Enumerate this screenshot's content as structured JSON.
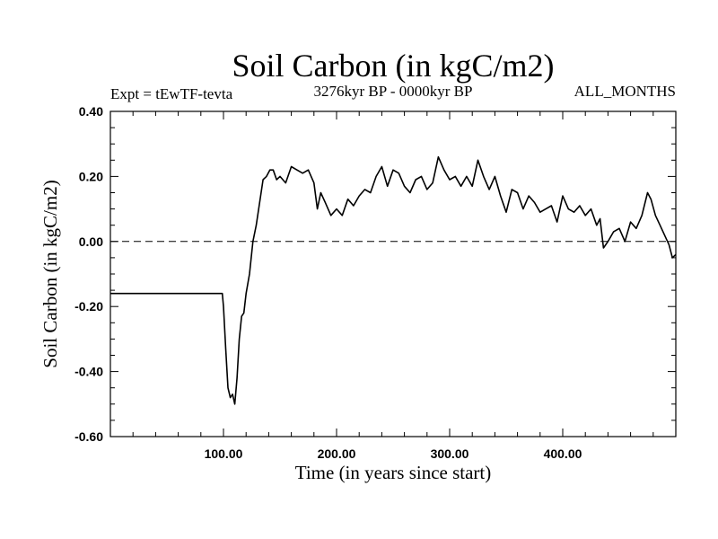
{
  "chart_data": {
    "type": "line",
    "title": "Soil Carbon (in kgC/m2)",
    "subtitle_left": "Expt = tEwTF-tevta",
    "subtitle_center": "3276kyr BP - 0000kyr BP",
    "subtitle_right": "ALL_MONTHS",
    "xlabel": "Time (in years since start)",
    "ylabel": "Soil Carbon (in kgC/m2)",
    "xlim": [
      0,
      500
    ],
    "ylim": [
      -0.6,
      0.4
    ],
    "x_ticks": [
      100,
      200,
      300,
      400
    ],
    "x_tick_labels": [
      "100.00",
      "200.00",
      "300.00",
      "400.00"
    ],
    "y_ticks": [
      -0.6,
      -0.4,
      -0.2,
      0.0,
      0.2,
      0.4
    ],
    "y_tick_labels": [
      "-0.60",
      "-0.40",
      "-0.20",
      "0.00",
      "0.20",
      "0.40"
    ],
    "reference_line": {
      "y": 0.0,
      "style": "dashed"
    },
    "series": [
      {
        "name": "Soil Carbon",
        "x": [
          0,
          99,
          100,
          102,
          104,
          106,
          108,
          110,
          112,
          114,
          116,
          118,
          120,
          123,
          126,
          129,
          132,
          135,
          138,
          141,
          144,
          147,
          150,
          155,
          160,
          165,
          170,
          175,
          180,
          183,
          186,
          190,
          195,
          200,
          205,
          210,
          215,
          220,
          225,
          230,
          235,
          240,
          245,
          250,
          255,
          260,
          265,
          270,
          275,
          280,
          285,
          290,
          295,
          300,
          305,
          310,
          315,
          320,
          325,
          330,
          335,
          340,
          345,
          350,
          355,
          360,
          365,
          370,
          375,
          380,
          385,
          390,
          395,
          400,
          405,
          410,
          415,
          420,
          425,
          430,
          433,
          436,
          440,
          445,
          450,
          455,
          460,
          465,
          470,
          475,
          478,
          482,
          486,
          490,
          494,
          497,
          500
        ],
        "values": [
          -0.16,
          -0.16,
          -0.2,
          -0.33,
          -0.45,
          -0.48,
          -0.47,
          -0.5,
          -0.42,
          -0.3,
          -0.23,
          -0.22,
          -0.16,
          -0.1,
          0.0,
          0.05,
          0.12,
          0.19,
          0.2,
          0.22,
          0.22,
          0.19,
          0.2,
          0.18,
          0.23,
          0.22,
          0.21,
          0.22,
          0.18,
          0.1,
          0.15,
          0.12,
          0.08,
          0.1,
          0.08,
          0.13,
          0.11,
          0.14,
          0.16,
          0.15,
          0.2,
          0.23,
          0.17,
          0.22,
          0.21,
          0.17,
          0.15,
          0.19,
          0.2,
          0.16,
          0.18,
          0.26,
          0.22,
          0.19,
          0.2,
          0.17,
          0.2,
          0.17,
          0.25,
          0.2,
          0.16,
          0.2,
          0.14,
          0.09,
          0.16,
          0.15,
          0.1,
          0.14,
          0.12,
          0.09,
          0.1,
          0.11,
          0.06,
          0.14,
          0.1,
          0.09,
          0.11,
          0.08,
          0.1,
          0.05,
          0.07,
          -0.02,
          0.0,
          0.03,
          0.04,
          0.0,
          0.06,
          0.04,
          0.08,
          0.15,
          0.13,
          0.08,
          0.05,
          0.02,
          -0.01,
          -0.05,
          -0.04
        ]
      }
    ]
  }
}
